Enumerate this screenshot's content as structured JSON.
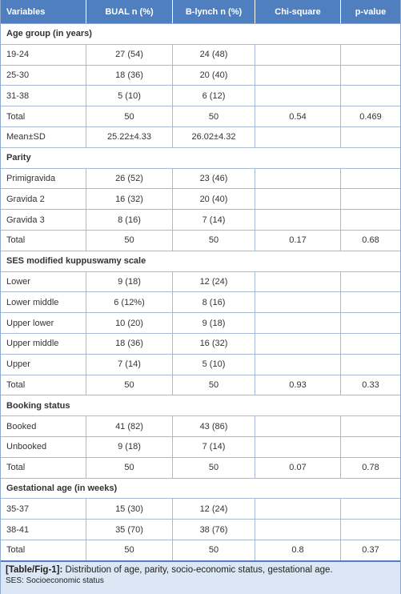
{
  "table": {
    "header": [
      "Variables",
      "BUAL n (%)",
      "B-lynch n (%)",
      "Chi-square",
      "p-value"
    ],
    "sections": [
      {
        "title": "Age group (in years)",
        "rows": [
          [
            "19-24",
            "27 (54)",
            "24 (48)"
          ],
          [
            "25-30",
            "18 (36)",
            "20 (40)"
          ],
          [
            "31-38",
            "5 (10)",
            "6 (12)"
          ],
          [
            "Total",
            "50",
            "50",
            "0.54",
            "0.469"
          ],
          [
            "Mean±SD",
            "25.22±4.33",
            "26.02±4.32"
          ]
        ]
      },
      {
        "title": "Parity",
        "rows": [
          [
            "Primigravida",
            "26 (52)",
            "23 (46)"
          ],
          [
            "Gravida 2",
            "16 (32)",
            "20 (40)"
          ],
          [
            "Gravida 3",
            "8 (16)",
            "7 (14)"
          ],
          [
            "Total",
            "50",
            "50",
            "0.17",
            "0.68"
          ]
        ]
      },
      {
        "title": "SES modified kuppuswamy scale",
        "rows": [
          [
            "Lower",
            "9 (18)",
            "12 (24)"
          ],
          [
            "Lower middle",
            "6 (12%)",
            "8 (16)"
          ],
          [
            "Upper lower",
            "10 (20)",
            "9 (18)"
          ],
          [
            "Upper middle",
            "18 (36)",
            "16 (32)"
          ],
          [
            "Upper",
            "7 (14)",
            "5 (10)"
          ],
          [
            "Total",
            "50",
            "50",
            "0.93",
            "0.33"
          ]
        ]
      },
      {
        "title": "Booking status",
        "rows": [
          [
            "Booked",
            "41 (82)",
            "43 (86)"
          ],
          [
            "Unbooked",
            "9 (18)",
            "7 (14)"
          ],
          [
            "Total",
            "50",
            "50",
            "0.07",
            "0.78"
          ]
        ]
      },
      {
        "title": "Gestational age (in weeks)",
        "rows": [
          [
            "35-37",
            "15 (30)",
            "12 (24)"
          ],
          [
            "38-41",
            "35 (70)",
            "38 (76)"
          ],
          [
            "Total",
            "50",
            "50",
            "0.8",
            "0.37"
          ]
        ]
      }
    ]
  },
  "caption": {
    "label": "[Table/Fig-1]:",
    "text": "Distribution of age, parity, socio-economic status, gestational age.",
    "note": "SES: Socioeconomic status"
  }
}
